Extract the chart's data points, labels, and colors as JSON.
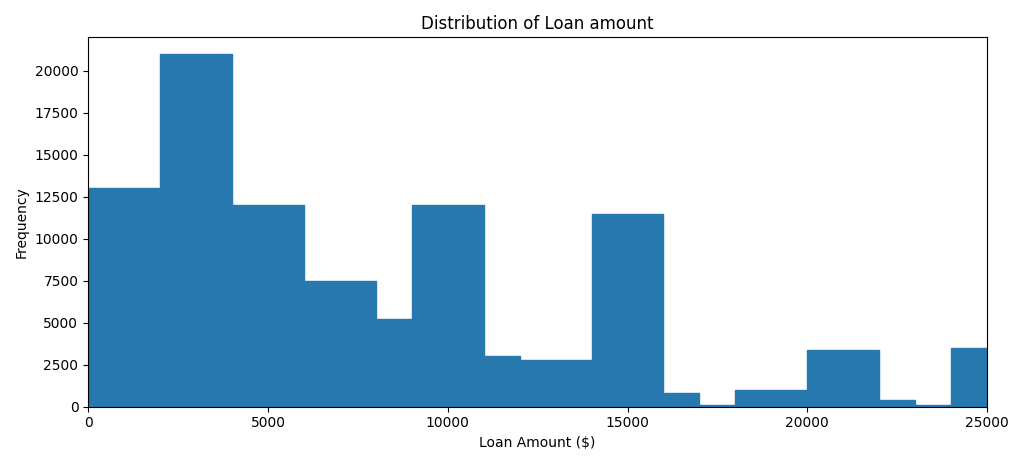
{
  "title": "Distribution of Loan amount",
  "xlabel": "Loan Amount ($)",
  "ylabel": "Frequency",
  "bar_color": "#2878b0",
  "bin_edges": [
    0,
    1000,
    2000,
    3000,
    4000,
    5000,
    6000,
    7000,
    8000,
    9000,
    10000,
    11000,
    12000,
    13000,
    14000,
    15000,
    16000,
    17000,
    18000,
    19000,
    20000,
    21000,
    22000,
    23000,
    24000,
    25000
  ],
  "frequencies": [
    13000,
    13000,
    21000,
    21000,
    12000,
    12000,
    7500,
    7500,
    5200,
    12000,
    12000,
    3000,
    2800,
    2800,
    11500,
    11500,
    800,
    100,
    1000,
    1000,
    3400,
    3400,
    400,
    100,
    3500
  ],
  "ylim": [
    0,
    22000
  ],
  "xticks": [
    0,
    5000,
    10000,
    15000,
    20000,
    25000
  ],
  "figsize": [
    10.24,
    4.65
  ],
  "dpi": 100
}
